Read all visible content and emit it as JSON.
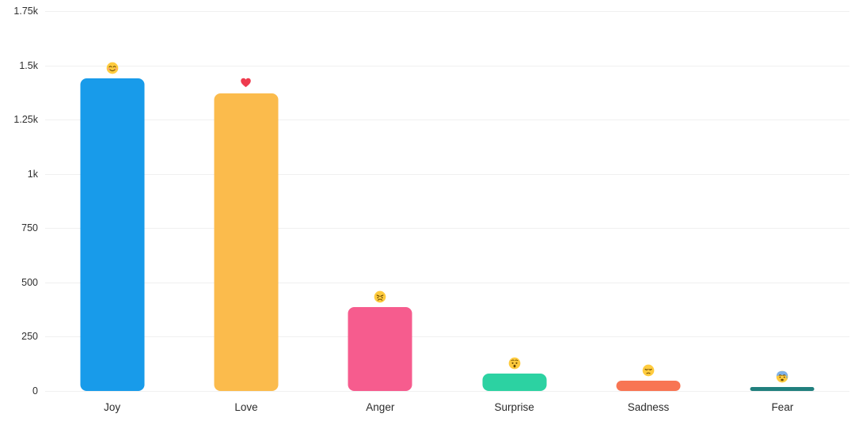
{
  "chart_data": {
    "type": "bar",
    "title": "",
    "xlabel": "",
    "ylabel": "",
    "categories": [
      "Joy",
      "Love",
      "Anger",
      "Surprise",
      "Sadness",
      "Fear"
    ],
    "values": [
      1440,
      1370,
      387,
      80,
      47,
      18
    ],
    "bar_colors": [
      "#189BEA",
      "#FBBB4C",
      "#F65C8E",
      "#2CD2A2",
      "#F87553",
      "#21807E"
    ],
    "emoji_icons": [
      {
        "name": "smiling-face-emoji-icon",
        "char": "😊"
      },
      {
        "name": "red-heart-emoji-icon",
        "char": "❤️"
      },
      {
        "name": "angry-face-emoji-icon",
        "char": "😠"
      },
      {
        "name": "hushed-face-emoji-icon",
        "char": "😯"
      },
      {
        "name": "pensive-face-emoji-icon",
        "char": "😔"
      },
      {
        "name": "anxious-face-sweat-emoji-icon",
        "char": "😰"
      }
    ],
    "ylim": [
      0,
      1750
    ],
    "yticks": {
      "values": [
        0,
        250,
        500,
        750,
        1000,
        1250,
        1500,
        1750
      ],
      "labels": [
        "0",
        "250",
        "500",
        "750",
        "1k",
        "1.25k",
        "1.5k",
        "1.75k"
      ]
    },
    "grid": true,
    "legend": "none",
    "colors": {
      "background": "#ffffff",
      "gridline": "#f0f0f0",
      "axis_label": "#2b2b2b"
    }
  }
}
